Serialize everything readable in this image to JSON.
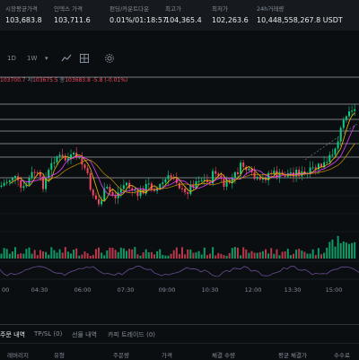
{
  "stats": [
    {
      "label": "시장평균가격",
      "value": "103,683.8"
    },
    {
      "label": "인덱스 가격",
      "value": "103,711.6"
    },
    {
      "label": "펀딩/카운트다운",
      "value": "0.01%/01:18:57"
    },
    {
      "label": "최고가",
      "value": "104,365.4"
    },
    {
      "label": "최저가",
      "value": "102,263.6"
    },
    {
      "label": "24h거래량",
      "value": "10,448,558,267.8 USDT"
    }
  ],
  "toolbar": {
    "interval_1": "1D",
    "interval_2": "1W",
    "dropdown": "▾"
  },
  "ohlc": {
    "partial_close": "103700.7",
    "low_label": "저",
    "low": "103675.5",
    "close_label": "종",
    "close": "103683.8",
    "change": "-5.8 (-0.01%)"
  },
  "time_axis": [
    "00",
    "04:30",
    "06:00",
    "07:30",
    "09:00",
    "10:30",
    "12:00",
    "13:30",
    "15:00"
  ],
  "colors": {
    "up": "#0ecb81",
    "down": "#f6465d",
    "ma_fast": "#f0b90b",
    "ma_mid": "#e040fb",
    "ma_slow": "#c99400"
  },
  "tabs": [
    {
      "label": "주문 내역",
      "active": true
    },
    {
      "label": "TP/SL (0)",
      "active": false
    },
    {
      "label": "선물 내역",
      "active": false
    },
    {
      "label": "카피 트레이드 (0)",
      "active": false
    }
  ],
  "columns": [
    "레버리지",
    "유형",
    "주문량",
    "가격",
    "체결 수량",
    "평균 체결가",
    "수수료"
  ]
}
